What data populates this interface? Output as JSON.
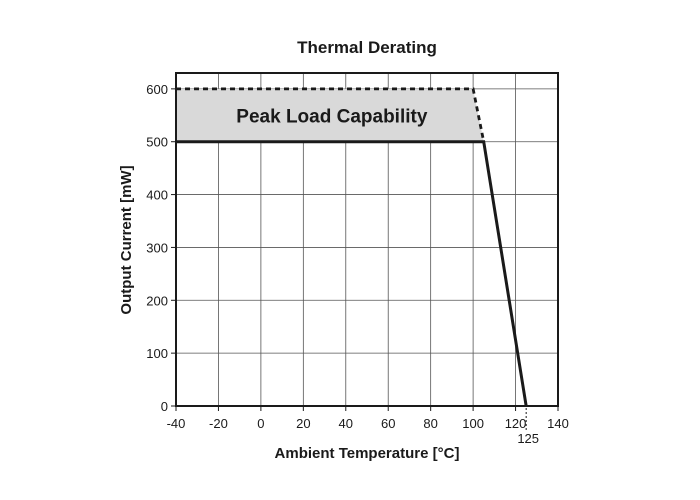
{
  "chart_data": {
    "type": "line",
    "title": "Thermal Derating",
    "xlabel": "Ambient Temperature [°C]",
    "ylabel": "Output Current [mW]",
    "xlim": [
      -40,
      140
    ],
    "ylim": [
      0,
      630
    ],
    "x_ticks": [
      -40,
      -20,
      0,
      20,
      40,
      60,
      80,
      100,
      120,
      140
    ],
    "y_ticks": [
      0,
      100,
      200,
      300,
      400,
      500,
      600
    ],
    "extra_x_tick": {
      "value": 125,
      "label": "125"
    },
    "grid": true,
    "series": [
      {
        "style": "solid",
        "color": "#1a1a1a",
        "points": [
          [
            -40,
            500
          ],
          [
            105,
            500
          ],
          [
            125,
            0
          ]
        ]
      },
      {
        "style": "dashed",
        "color": "#1a1a1a",
        "points": [
          [
            -40,
            600
          ],
          [
            100,
            600
          ],
          [
            105,
            500
          ]
        ]
      }
    ],
    "shaded_region": {
      "label": "Peak Load Capability",
      "color": "#d9d9d9",
      "points": [
        [
          -40,
          500
        ],
        [
          105,
          500
        ],
        [
          100,
          600
        ],
        [
          -40,
          600
        ]
      ]
    }
  }
}
